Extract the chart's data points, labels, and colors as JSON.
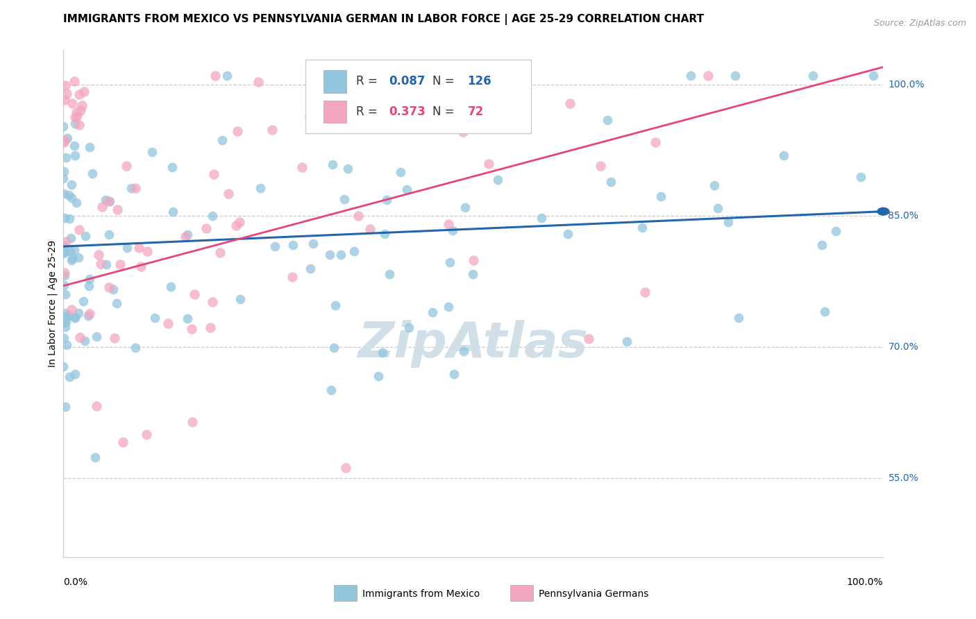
{
  "title": "IMMIGRANTS FROM MEXICO VS PENNSYLVANIA GERMAN IN LABOR FORCE | AGE 25-29 CORRELATION CHART",
  "source": "Source: ZipAtlas.com",
  "ylabel": "In Labor Force | Age 25-29",
  "xlim": [
    0.0,
    1.0
  ],
  "ylim": [
    0.46,
    1.04
  ],
  "ytick_vals": [
    0.55,
    0.7,
    0.85,
    1.0
  ],
  "ytick_labels": [
    "55.0%",
    "70.0%",
    "85.0%",
    "100.0%"
  ],
  "blue_color": "#92c5de",
  "pink_color": "#f4a6c0",
  "blue_line_color": "#2166ac",
  "pink_line_color": "#e8437a",
  "watermark_color": "#d0dfe8",
  "blue_line": {
    "x0": 0.0,
    "x1": 1.0,
    "y0": 0.815,
    "y1": 0.855
  },
  "pink_line": {
    "x0": 0.0,
    "x1": 1.0,
    "y0": 0.77,
    "y1": 1.02
  },
  "title_fontsize": 11,
  "source_fontsize": 9,
  "axis_label_fontsize": 10,
  "tick_label_fontsize": 10,
  "legend_fontsize": 12
}
